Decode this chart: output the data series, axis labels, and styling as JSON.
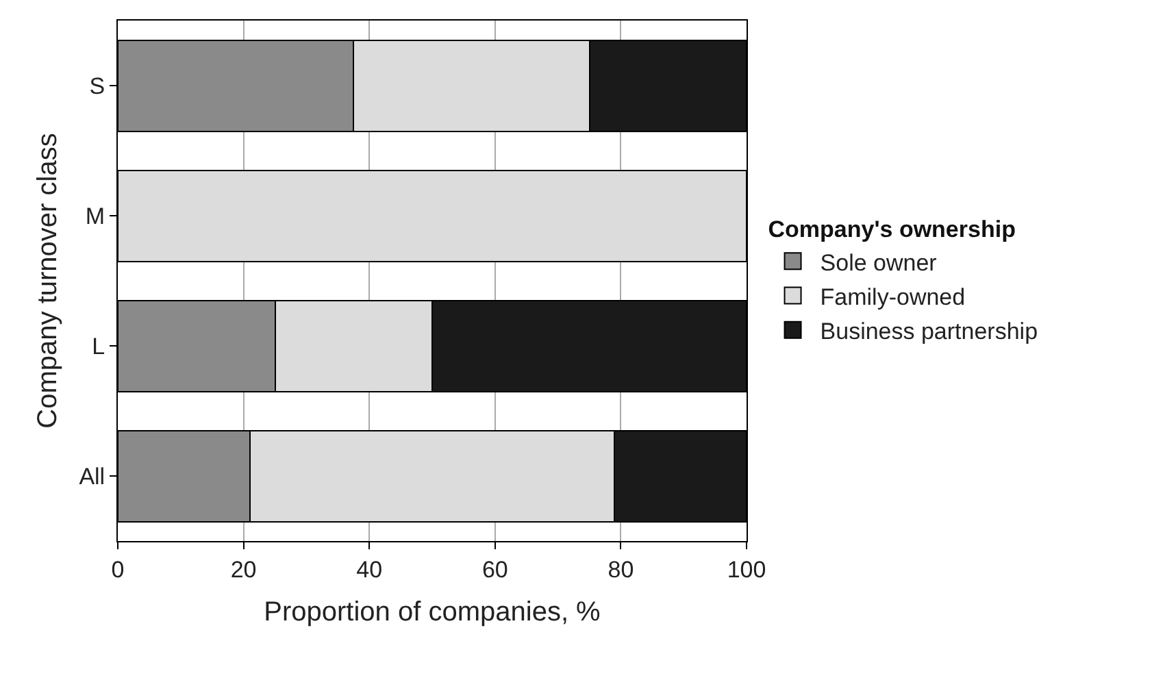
{
  "chart_data": {
    "type": "bar",
    "orientation": "horizontal",
    "stacked": true,
    "xlabel": "Proportion of companies, %",
    "ylabel": "Company turnover class",
    "legend_title": "Company's ownership",
    "categories": [
      "S",
      "M",
      "L",
      "All"
    ],
    "series": [
      {
        "name": "Sole owner",
        "color": "#8a8a8a",
        "values": [
          37.5,
          0,
          25,
          21
        ]
      },
      {
        "name": "Family-owned",
        "color": "#dcdcdc",
        "values": [
          37.5,
          100,
          25,
          58
        ]
      },
      {
        "name": "Business partnership",
        "color": "#1a1a1a",
        "values": [
          25,
          0,
          50,
          21
        ]
      }
    ],
    "xlim": [
      0,
      100
    ],
    "xticks": [
      0,
      20,
      40,
      60,
      80,
      100
    ],
    "grid": "x",
    "legend": "right"
  }
}
